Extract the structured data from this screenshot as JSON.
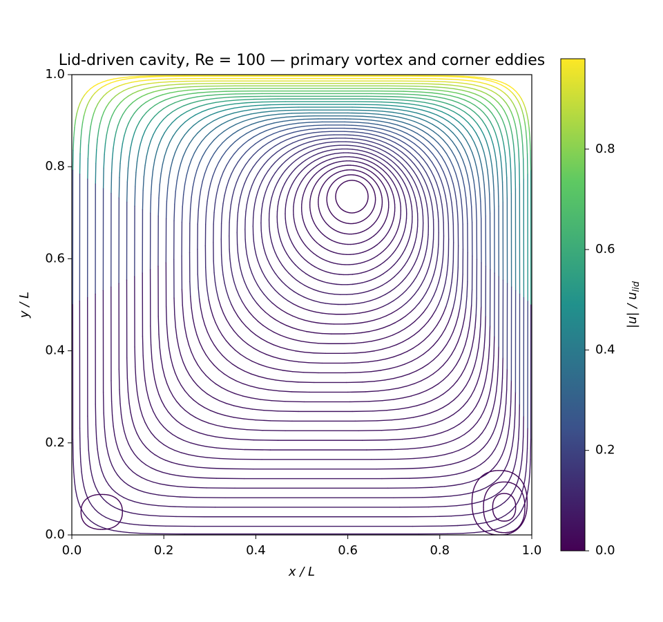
{
  "chart_data": {
    "type": "streamplot",
    "title": "Lid-driven cavity, Re = 100 — primary vortex and corner eddies",
    "xlabel": "x / L",
    "ylabel": "y / L",
    "colorbar_label": "|u| / u",
    "colorbar_label_sub": "lid",
    "xlim": [
      0,
      1
    ],
    "ylim": [
      0,
      1
    ],
    "xticks": [
      {
        "value": 0,
        "label": "0.0"
      },
      0.2,
      0.4,
      0.6,
      0.8,
      {
        "value": 1,
        "label": "1.0"
      }
    ],
    "yticks": [
      {
        "value": 0,
        "label": "0.0"
      },
      0.2,
      0.4,
      0.6,
      0.8,
      {
        "value": 1,
        "label": "1.0"
      }
    ],
    "clim": [
      0,
      0.98
    ],
    "cticks": [
      {
        "value": 0,
        "label": "0.0"
      },
      0.2,
      0.4,
      0.6,
      0.8
    ],
    "colormap": [
      "#440154",
      "#3b528b",
      "#21918c",
      "#5ec962",
      "#fde725"
    ]
  }
}
